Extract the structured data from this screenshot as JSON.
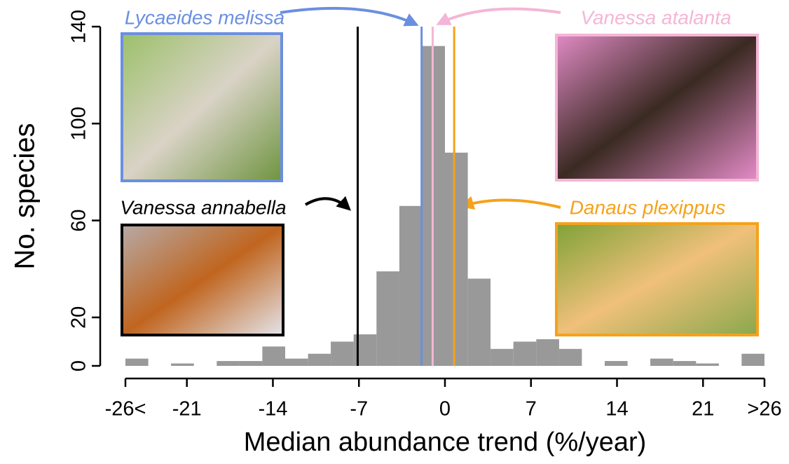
{
  "chart_data": {
    "type": "histogram",
    "xlabel": "Median abundance trend (%/year)",
    "ylabel": "No. species",
    "bins": [
      -26,
      -24.14,
      -22.29,
      -20.43,
      -18.57,
      -16.71,
      -14.86,
      -13,
      -11.14,
      -9.29,
      -7.43,
      -5.57,
      -3.71,
      -1.86,
      0,
      1.86,
      3.71,
      5.57,
      7.43,
      9.29,
      11.14,
      13,
      14.86,
      16.71,
      18.57,
      20.43,
      22.29,
      24.14,
      26
    ],
    "counts": [
      3,
      0,
      1,
      0,
      2,
      2,
      8,
      3,
      5,
      10,
      13,
      39,
      66,
      132,
      88,
      36,
      7,
      10,
      11,
      7,
      0,
      2,
      0,
      3,
      2,
      1,
      0,
      5
    ],
    "color": "#999999",
    "xlim": [
      -26,
      26
    ],
    "ylim": [
      0,
      140
    ],
    "xticks": [
      {
        "value": -26,
        "label": "-26<"
      },
      -21,
      -14,
      -7,
      0,
      7,
      14,
      21,
      {
        "value": 26,
        "label": ">26"
      }
    ],
    "yticks": [
      0,
      20,
      60,
      100,
      140
    ],
    "lines": [
      {
        "name": "Lycaeides melissa",
        "value": -1.9,
        "color": "#6b8fe0"
      },
      {
        "name": "Vanessa atalanta",
        "value": -1.0,
        "color": "#f4b6d6"
      },
      {
        "name": "Vanessa annabella",
        "value": -7.1,
        "color": "#000000"
      },
      {
        "name": "Danaus plexippus",
        "value": 0.75,
        "color": "#f5a21b"
      }
    ]
  }
}
